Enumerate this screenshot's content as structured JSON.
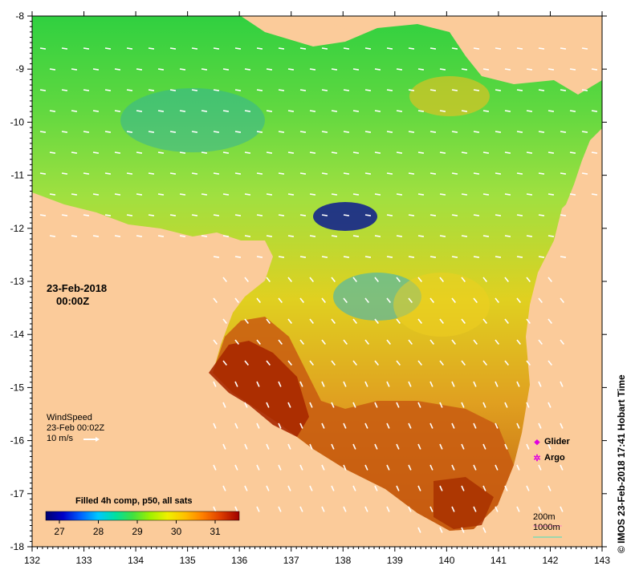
{
  "map": {
    "lon_ticks": [
      "132",
      "133",
      "134",
      "135",
      "136",
      "137",
      "138",
      "139",
      "140",
      "141",
      "142",
      "143"
    ],
    "lat_ticks": [
      "-8",
      "-9",
      "-10",
      "-11",
      "-12",
      "-13",
      "-14",
      "-15",
      "-16",
      "-17",
      "-18"
    ],
    "date_line1": "23-Feb-2018",
    "date_line2": "00:00Z",
    "wind": {
      "title": "WindSpeed",
      "time": "23-Feb 00:02Z",
      "scale_label": "10 m/s"
    },
    "legend": {
      "glider": "Glider",
      "argo": "Argo",
      "glider_color": "#e000e0",
      "argo_color": "#e000e0"
    },
    "colorbar": {
      "title": "Filled 4h comp, p50, all sats",
      "ticks": [
        "27",
        "28",
        "29",
        "30",
        "31"
      ],
      "colors": [
        "#000070",
        "#0000c8",
        "#0060ff",
        "#00c8ff",
        "#00e0a0",
        "#40e040",
        "#a0f000",
        "#f0f000",
        "#ffc000",
        "#ff8000",
        "#e04000",
        "#a00000"
      ]
    },
    "depth_scale": {
      "label_200": "200m",
      "label_1000": "1000m"
    },
    "credit": "© IMOS 23-Feb-2018 17:41 Hobart Time",
    "land_color": "#fbcb9a"
  }
}
